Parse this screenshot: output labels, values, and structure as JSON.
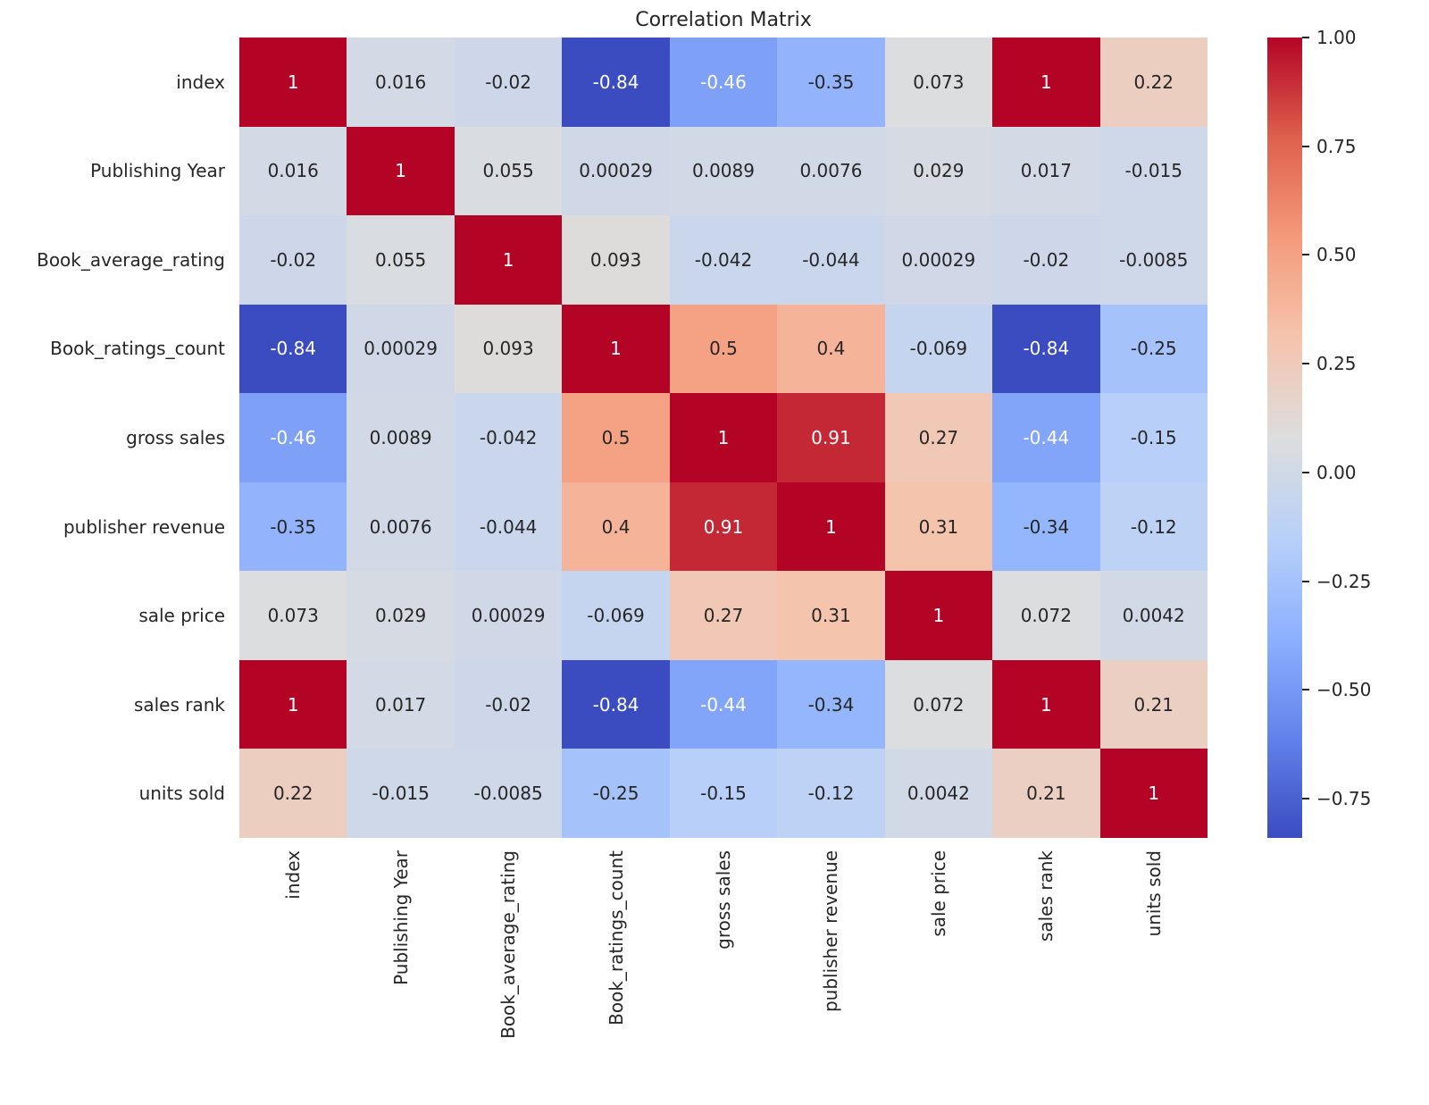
{
  "chart_data": {
    "type": "heatmap",
    "title": "Correlation Matrix",
    "labels": [
      "index",
      "Publishing Year",
      "Book_average_rating",
      "Book_ratings_count",
      "gross sales",
      "publisher revenue",
      "sale price",
      "sales rank",
      "units sold"
    ],
    "matrix": [
      [
        1,
        0.016,
        -0.02,
        -0.84,
        -0.46,
        -0.35,
        0.073,
        1,
        0.22
      ],
      [
        0.016,
        1,
        0.055,
        0.00029,
        0.0089,
        0.0076,
        0.029,
        0.017,
        -0.015
      ],
      [
        -0.02,
        0.055,
        1,
        0.093,
        -0.042,
        -0.044,
        0.00029,
        -0.02,
        -0.0085
      ],
      [
        -0.84,
        0.00029,
        0.093,
        1,
        0.5,
        0.4,
        -0.069,
        -0.84,
        -0.25
      ],
      [
        -0.46,
        0.0089,
        -0.042,
        0.5,
        1,
        0.91,
        0.27,
        -0.44,
        -0.15
      ],
      [
        -0.35,
        0.0076,
        -0.044,
        0.4,
        0.91,
        1,
        0.31,
        -0.34,
        -0.12
      ],
      [
        0.073,
        0.029,
        0.00029,
        -0.069,
        0.27,
        0.31,
        1,
        0.072,
        0.0042
      ],
      [
        1,
        0.017,
        -0.02,
        -0.84,
        -0.44,
        -0.34,
        0.072,
        1,
        0.21
      ],
      [
        0.22,
        -0.015,
        -0.0085,
        -0.25,
        -0.15,
        -0.12,
        0.0042,
        0.21,
        1
      ]
    ],
    "vmin": -0.84,
    "vmax": 1.0,
    "annotation_format": ".2g",
    "grid": false,
    "colormap": {
      "name": "coolwarm",
      "stops": [
        {
          "t": 0.0,
          "color": "#3b4cc0"
        },
        {
          "t": 0.125,
          "color": "#6282ea"
        },
        {
          "t": 0.25,
          "color": "#8db0fe"
        },
        {
          "t": 0.375,
          "color": "#b8d0f9"
        },
        {
          "t": 0.5,
          "color": "#dddddd"
        },
        {
          "t": 0.625,
          "color": "#f5c4ad"
        },
        {
          "t": 0.75,
          "color": "#f49a7b"
        },
        {
          "t": 0.875,
          "color": "#de604d"
        },
        {
          "t": 1.0,
          "color": "#b40426"
        }
      ]
    },
    "colorbar": {
      "position": "right",
      "ticks": [
        {
          "value": 1.0,
          "label": "1.00"
        },
        {
          "value": 0.75,
          "label": "0.75"
        },
        {
          "value": 0.5,
          "label": "0.50"
        },
        {
          "value": 0.25,
          "label": "0.25"
        },
        {
          "value": 0.0,
          "label": "0.00"
        },
        {
          "value": -0.25,
          "label": "−0.25"
        },
        {
          "value": -0.5,
          "label": "−0.50"
        },
        {
          "value": -0.75,
          "label": "−0.75"
        }
      ]
    },
    "text_colors": {
      "dark": "#262626",
      "light": "#ffffff"
    }
  }
}
